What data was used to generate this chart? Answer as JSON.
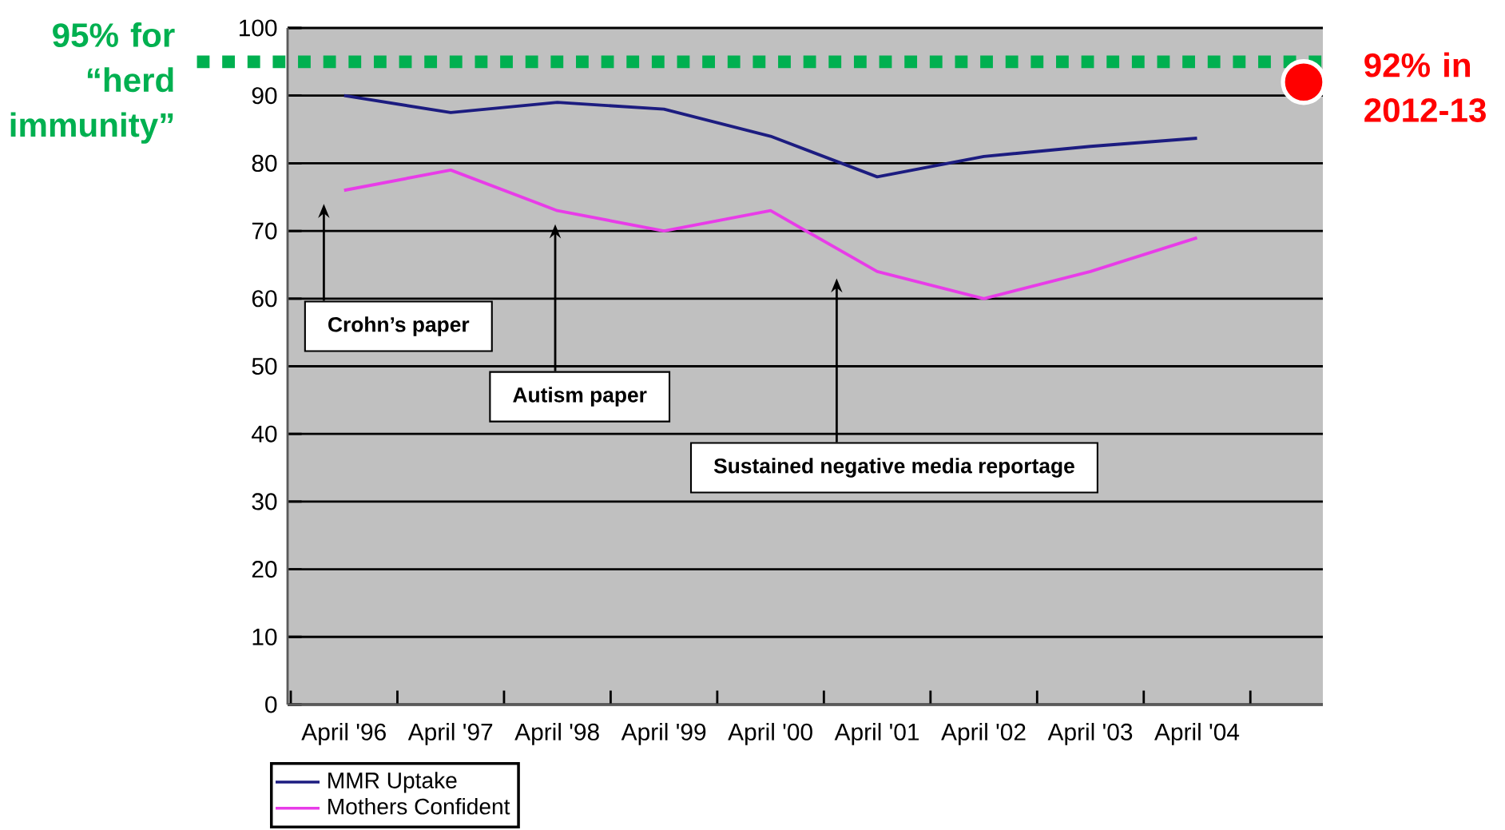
{
  "chart_data": {
    "type": "line",
    "categories": [
      "April '96",
      "April '97",
      "April '98",
      "April '99",
      "April '00",
      "April '01",
      "April '02",
      "April '03",
      "April '04",
      null
    ],
    "series": [
      {
        "name": "MMR Uptake",
        "color": "#1c1c80",
        "values": [
          90,
          87.5,
          89,
          88,
          84,
          78,
          81,
          82.5,
          83.7,
          null
        ]
      },
      {
        "name": "Mothers Confident",
        "color": "#e83ce8",
        "values": [
          76,
          79,
          73,
          70,
          73,
          64,
          60,
          64,
          69,
          null
        ]
      },
      {
        "type": "scatter",
        "marker": "circle",
        "color": "#ff0000",
        "values": [
          null,
          null,
          null,
          null,
          null,
          null,
          null,
          null,
          null,
          92
        ]
      }
    ],
    "ylim": [
      0,
      100
    ],
    "yticks": [
      0,
      10,
      20,
      30,
      40,
      50,
      60,
      70,
      80,
      90,
      100
    ],
    "grid": "y",
    "legend": "bottom left",
    "marker": "none",
    "line_style": "solid",
    "ref_lines": [
      {
        "axis": "y",
        "value": 95,
        "label": "95% for “herd immunity”",
        "color": "#00b050",
        "line_style": "dotted"
      }
    ],
    "annotations": [
      "Crohn’s paper",
      "Autism paper",
      "Sustained negative media reportage",
      "92% in 2012-13"
    ]
  }
}
